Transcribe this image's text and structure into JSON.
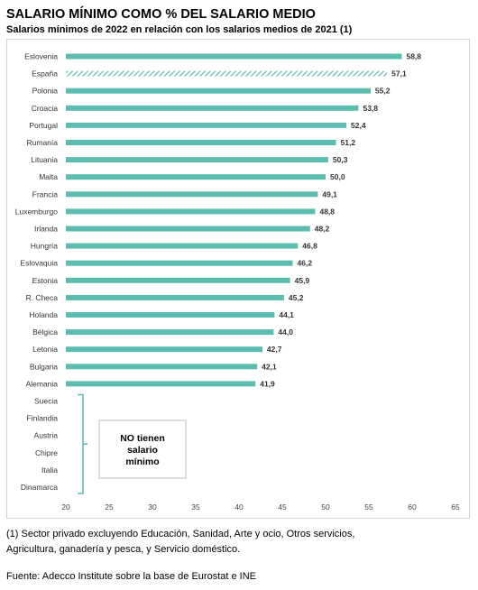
{
  "chart_data": {
    "type": "bar",
    "orientation": "horizontal",
    "title": "SALARIO MÍNIMO COMO % DEL SALARIO MEDIO",
    "subtitle": "Salarios mínimos de 2022 en relación con los salarios medios de 2021 (1)",
    "categories": [
      "Eslovenia",
      "España",
      "Polonia",
      "Croacia",
      "Portugal",
      "Rumanía",
      "Lituania",
      "Malta",
      "Francia",
      "Luxemburgo",
      "Irlanda",
      "Hungría",
      "Eslovaquia",
      "Estonia",
      "R. Checa",
      "Holanda",
      "Bélgica",
      "Letonia",
      "Bulgaria",
      "Alemania"
    ],
    "values": [
      58.8,
      57.1,
      55.2,
      53.8,
      52.4,
      51.2,
      50.3,
      50.0,
      49.1,
      48.8,
      48.2,
      46.8,
      46.2,
      45.9,
      45.2,
      44.1,
      44.0,
      42.7,
      42.1,
      41.9
    ],
    "value_labels": [
      "58,8",
      "57,1",
      "55,2",
      "53,8",
      "52,4",
      "51,2",
      "50,3",
      "50,0",
      "49,1",
      "48,8",
      "48,2",
      "46,8",
      "46,2",
      "45,9",
      "45,2",
      "44,1",
      "44,0",
      "42,7",
      "42,1",
      "41,9"
    ],
    "highlight_category": "España",
    "no_minimum_countries": [
      "Suecia",
      "Finlandia",
      "Austria",
      "Chipre",
      "Italia",
      "Dinamarca"
    ],
    "no_minimum_label": [
      "NO tienen",
      "salario",
      "mínimo"
    ],
    "xlim": [
      20,
      65
    ],
    "xticks": [
      20,
      25,
      30,
      35,
      40,
      45,
      50,
      55,
      60,
      65
    ],
    "bar_color": "#5dbcb0",
    "grid": false
  },
  "footnote": {
    "line1": "(1) Sector privado excluyendo Educación, Sanidad, Arte y ocio, Otros servicios,",
    "line2": "Agricultura, ganadería y pesca, y Servicio doméstico."
  },
  "source": "Fuente: Adecco Institute sobre la base de Eurostat e INE"
}
